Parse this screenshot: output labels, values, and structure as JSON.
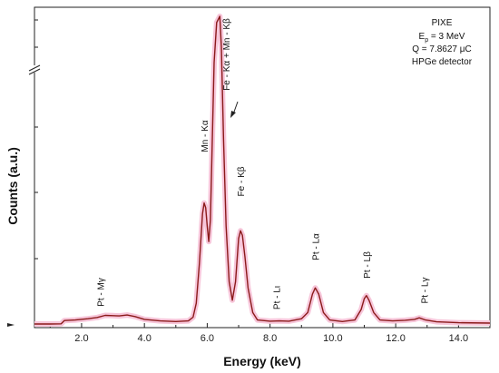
{
  "chart_data": {
    "type": "line",
    "title": "",
    "xlabel": "Energy (keV)",
    "ylabel": "Counts (a.u.)",
    "xlim": [
      0.5,
      15.0
    ],
    "x_ticks": [
      2.0,
      4.0,
      6.0,
      8.0,
      10.0,
      12.0,
      14.0
    ],
    "x_tick_labels": [
      "2.0",
      "4.0",
      "6.0",
      "8.0",
      "10.0",
      "12.0",
      "14.0"
    ],
    "y_axis_break": true,
    "grid": false,
    "line_color": "#8b1a1a",
    "glow_color": "#f7c6da",
    "info_box": {
      "position": "top-right",
      "lines": [
        "PIXE",
        "E",
        "p",
        " = 3 MeV",
        "Q = 7.8627 μC",
        "HPGe detector"
      ]
    },
    "peak_labels": [
      {
        "x": 2.6,
        "label": "Pt - Mγ"
      },
      {
        "x": 5.9,
        "label": "Mn - Kα"
      },
      {
        "x": 6.6,
        "label": "Fe - Kα + Mn - Kβ"
      },
      {
        "x": 7.06,
        "label": "Fe - Kβ"
      },
      {
        "x": 8.2,
        "label": "Pt - Lι"
      },
      {
        "x": 9.44,
        "label": "Pt - Lα"
      },
      {
        "x": 11.07,
        "label": "Pt - Lβ"
      },
      {
        "x": 12.9,
        "label": "Pt - Lγ"
      }
    ],
    "series": [
      {
        "x": [
          0.5,
          1.0,
          1.35,
          1.45,
          1.8,
          2.2,
          2.5,
          2.75,
          3.0,
          3.2,
          3.45,
          3.7,
          4.0,
          4.5,
          5.0,
          5.4,
          5.55,
          5.65,
          5.75,
          5.85,
          5.9,
          5.95,
          6.0,
          6.05,
          6.1,
          6.15,
          6.22,
          6.3,
          6.4,
          6.45,
          6.52,
          6.6,
          6.7,
          6.8,
          6.9,
          7.0,
          7.06,
          7.12,
          7.2,
          7.3,
          7.45,
          7.6,
          8.0,
          8.3,
          8.6,
          9.0,
          9.2,
          9.35,
          9.44,
          9.55,
          9.7,
          9.9,
          10.3,
          10.7,
          10.9,
          11.0,
          11.07,
          11.15,
          11.3,
          11.5,
          11.9,
          12.3,
          12.6,
          12.75,
          12.95,
          13.3,
          14.0,
          15.0
        ],
        "y": [
          0.3,
          0.3,
          0.35,
          1.4,
          1.6,
          2.0,
          2.4,
          3.1,
          3.0,
          2.9,
          3.2,
          2.7,
          1.8,
          1.3,
          1.1,
          1.3,
          2.5,
          7.0,
          20.0,
          36.0,
          39.5,
          38.0,
          32.0,
          27.0,
          34.0,
          55.0,
          85.0,
          98.0,
          100.0,
          90.0,
          60.0,
          32.0,
          14.0,
          8.0,
          14.0,
          28.0,
          30.5,
          29.0,
          22.0,
          12.0,
          4.0,
          1.6,
          1.2,
          1.3,
          1.2,
          2.0,
          4.0,
          10.0,
          12.0,
          10.0,
          4.0,
          1.6,
          1.1,
          1.6,
          5.0,
          8.5,
          9.5,
          8.0,
          4.0,
          1.6,
          1.3,
          1.5,
          1.8,
          2.3,
          1.6,
          1.0,
          0.7,
          0.6
        ]
      }
    ]
  }
}
